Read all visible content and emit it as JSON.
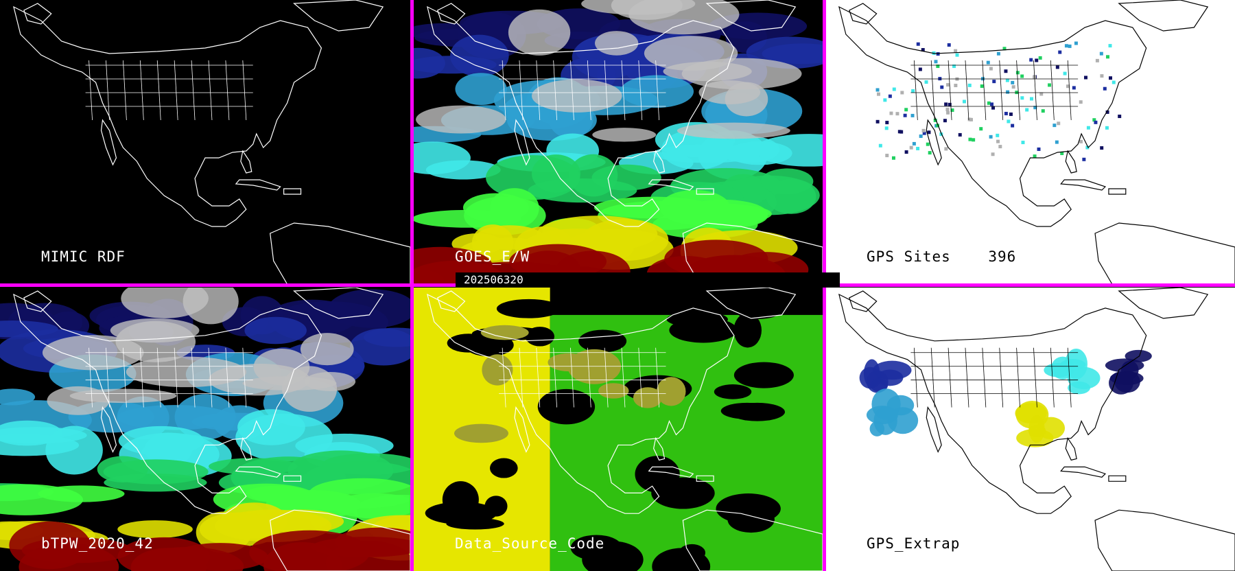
{
  "panels": [
    {
      "id": "mimic",
      "label": "MIMIC RDF",
      "theme": "dark",
      "fill": "none"
    },
    {
      "id": "goes",
      "label": "GOES_E/W",
      "theme": "dark",
      "fill": "pw"
    },
    {
      "id": "gps",
      "label": "GPS Sites    396",
      "theme": "light",
      "fill": "sites"
    },
    {
      "id": "bpw",
      "label": "bTPW_2020_42",
      "theme": "dark",
      "fill": "pw"
    },
    {
      "id": "source",
      "label": "Data_Source_Code",
      "theme": "dark",
      "fill": "source"
    },
    {
      "id": "extrap",
      "label": "GPS_Extrap",
      "theme": "light",
      "fill": "extrap"
    }
  ],
  "timestamp": "202506320",
  "colors": {
    "divider": "#ff00ff",
    "map_lines_dark": "#ffffff",
    "map_lines_light": "#000000",
    "pw_scale": [
      "#101060",
      "#1c2ea0",
      "#2fa0d0",
      "#40e8e8",
      "#20d060",
      "#40ff40",
      "#a0a020",
      "#e0e000",
      "#900000"
    ],
    "source_yellow": "#e6e600",
    "source_green": "#30c010",
    "source_olive": "#a0a030",
    "cloud_gray": "#c0c0c0"
  }
}
